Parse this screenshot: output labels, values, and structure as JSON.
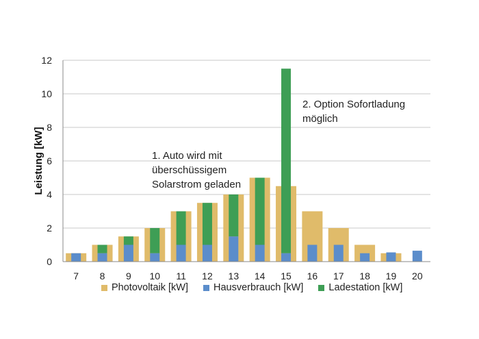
{
  "chart_data": {
    "type": "bar",
    "categories": [
      "7",
      "8",
      "9",
      "10",
      "11",
      "12",
      "13",
      "14",
      "15",
      "16",
      "17",
      "18",
      "19",
      "20"
    ],
    "series": [
      {
        "name": "Photovoltaik [kW]",
        "color": "#E0BB6A",
        "values": [
          0.5,
          1,
          1.5,
          2,
          3,
          3.5,
          4,
          5,
          4.5,
          3,
          2,
          1,
          0.5,
          0
        ]
      },
      {
        "name": "Hausverbrauch [kW]",
        "color": "#5B8DCB",
        "values": [
          0.5,
          0.5,
          1,
          0.5,
          1,
          1,
          1.5,
          1,
          0.5,
          1,
          1,
          0.5,
          0.55,
          0.65
        ]
      },
      {
        "name": "Ladestation [kW]",
        "color": "#3E9E55",
        "values": [
          0,
          1,
          1.5,
          2,
          3,
          3.5,
          4,
          5,
          11.5,
          0,
          0,
          0,
          0,
          0
        ]
      }
    ],
    "ylabel": "Leistung [kW]",
    "ylim": [
      0,
      12
    ],
    "yticks": [
      0,
      2,
      4,
      6,
      8,
      10,
      12
    ],
    "grid": true,
    "legend": "bottom",
    "annotations": [
      {
        "text": "1. Auto wird mit\nüberschüssigem\nSolarstrom geladen"
      },
      {
        "text": "2. Option Sofortladung\nmöglich"
      }
    ]
  }
}
